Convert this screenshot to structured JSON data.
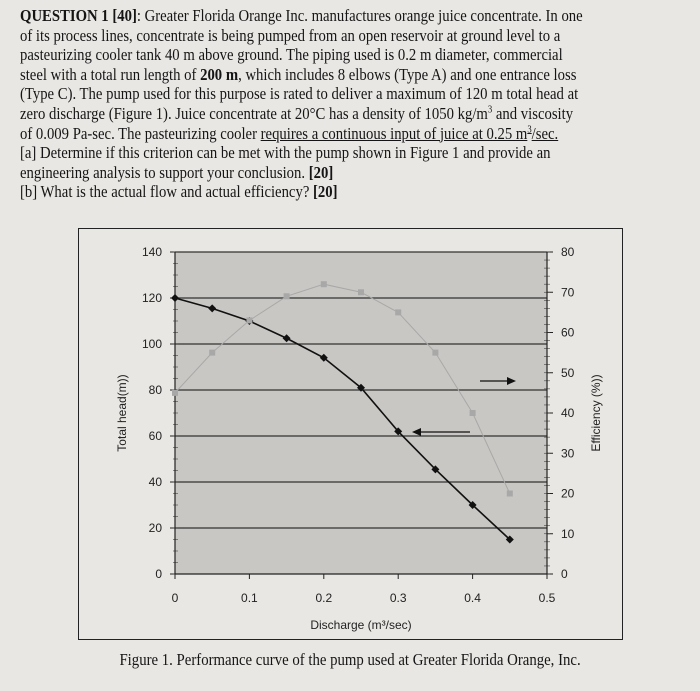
{
  "question": {
    "lines": [
      [
        {
          "t": "QUESTION 1 [40]",
          "s": "b"
        },
        {
          "t": ": Greater Florida Orange Inc. manufactures orange juice concentrate.  In one"
        }
      ],
      [
        {
          "t": "of its process lines, concentrate is being pumped from an open reservoir at ground level to a"
        }
      ],
      [
        {
          "t": "pasteurizing cooler tank 40 m above ground.  The piping used is 0.2 m diameter, commercial"
        }
      ],
      [
        {
          "t": "steel with a total run length of "
        },
        {
          "t": "200 m",
          "s": "b"
        },
        {
          "t": ", which includes 8 elbows (Type A) and one entrance loss"
        }
      ],
      [
        {
          "t": "(Type C).  The pump used for this purpose is rated to deliver a maximum of 120 m total head at"
        }
      ],
      [
        {
          "t": "zero discharge (Figure 1).  Juice concentrate at 20°C has a density of 1050 kg/m"
        },
        {
          "t": "3",
          "s": "sup"
        },
        {
          "t": " and viscosity"
        }
      ],
      [
        {
          "t": "of 0.009 Pa-sec.  The pasteurizing cooler "
        },
        {
          "t": "requires a continuous input of juice at 0.25 m",
          "s": "u"
        },
        {
          "t": "3",
          "s": "sup u"
        },
        {
          "t": "/sec.",
          "s": "u"
        }
      ],
      [
        {
          "t": "[a] Determine if this criterion can be met with the pump shown in Figure 1 and provide an"
        }
      ],
      [
        {
          "t": "engineering analysis to support your conclusion.  "
        },
        {
          "t": "[20]",
          "s": "b"
        }
      ],
      [
        {
          "t": "[b] What is the actual flow and actual efficiency? "
        },
        {
          "t": "[20]",
          "s": "b"
        }
      ]
    ]
  },
  "chart_data": {
    "type": "line",
    "xlabel": "Discharge (m³/sec)",
    "ylabel": "Total head(m))",
    "y2label": "Efficiency (%))",
    "xlim": [
      0,
      0.5
    ],
    "ylim": [
      0,
      140
    ],
    "y2lim": [
      0,
      80
    ],
    "xticks": [
      "0",
      "0.1",
      "0.2",
      "0.3",
      "0.4",
      "0.5"
    ],
    "yticks": [
      "0",
      "20",
      "40",
      "60",
      "80",
      "100",
      "120",
      "140"
    ],
    "y2ticks": [
      "0",
      "10",
      "20",
      "30",
      "40",
      "50",
      "60",
      "70",
      "80"
    ],
    "grid": "horizontal",
    "x": [
      0,
      0.05,
      0.1,
      0.15,
      0.2,
      0.25,
      0.3,
      0.35,
      0.4,
      0.45
    ],
    "series": [
      {
        "axis": "left",
        "color": "#111111",
        "marker": "diamond",
        "values": [
          120,
          115.5,
          110,
          102.5,
          94,
          81,
          62,
          45.5,
          30,
          15
        ]
      },
      {
        "axis": "right",
        "color": "#a8a8a8",
        "marker": "square",
        "values": [
          45,
          55,
          63,
          69,
          72,
          70,
          65,
          55,
          40,
          20
        ]
      }
    ],
    "plot_background": "#c9c7c4"
  },
  "figure": {
    "caption": "Figure 1.  Performance curve of the pump used at Greater Florida Orange, Inc."
  }
}
